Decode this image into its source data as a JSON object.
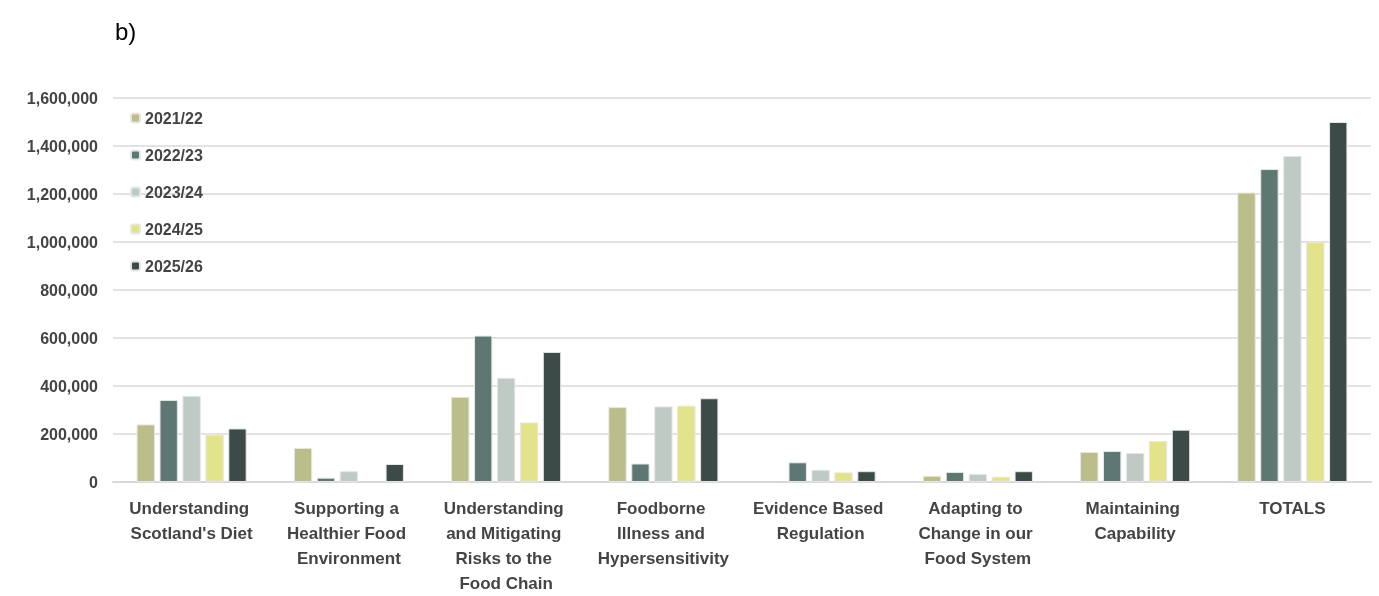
{
  "chart_data": {
    "type": "bar",
    "title": "b)",
    "categories": [
      "Understanding Scotland's Diet",
      "Supporting a Healthier Food Environment",
      "Understanding and Mitigating Risks to the Food Chain",
      "Foodborne Illness and Hypersensitivity",
      "Evidence Based Regulation",
      "Adapting to Change in our Food System",
      "Maintaining Capability",
      "TOTALS"
    ],
    "series": [
      {
        "name": "2021/22",
        "color": "#bbbd8a",
        "values": [
          240000,
          142000,
          355000,
          312000,
          null,
          26000,
          125000,
          1206000
        ]
      },
      {
        "name": "2022/23",
        "color": "#5f7773",
        "values": [
          342000,
          18000,
          610000,
          77000,
          82000,
          42000,
          129000,
          1304000
        ]
      },
      {
        "name": "2023/24",
        "color": "#bfcac5",
        "values": [
          359000,
          45000,
          434000,
          315000,
          51000,
          34000,
          121000,
          1358000
        ]
      },
      {
        "name": "2024/25",
        "color": "#e3e38c",
        "values": [
          197000,
          null,
          248000,
          318000,
          40000,
          22000,
          171000,
          1000000
        ]
      },
      {
        "name": "2025/26",
        "color": "#3d4b48",
        "values": [
          223000,
          75000,
          542000,
          349000,
          45000,
          45000,
          218000,
          1500000
        ]
      }
    ],
    "ylim": [
      0,
      1600000
    ],
    "yticks": [
      0,
      {
        "value": 200000,
        "label": "200,000"
      },
      {
        "value": 400000,
        "label": "400,000"
      },
      {
        "value": 600000,
        "label": "600,000"
      },
      {
        "value": 800000,
        "label": "800,000"
      },
      {
        "value": 1000000,
        "label": "1,000,000"
      },
      {
        "value": 1200000,
        "label": "1,200,000"
      },
      {
        "value": 1400000,
        "label": "1,400,000"
      },
      {
        "value": 1600000,
        "label": "1,600,000"
      }
    ],
    "grid": "y",
    "legend": "top left"
  }
}
